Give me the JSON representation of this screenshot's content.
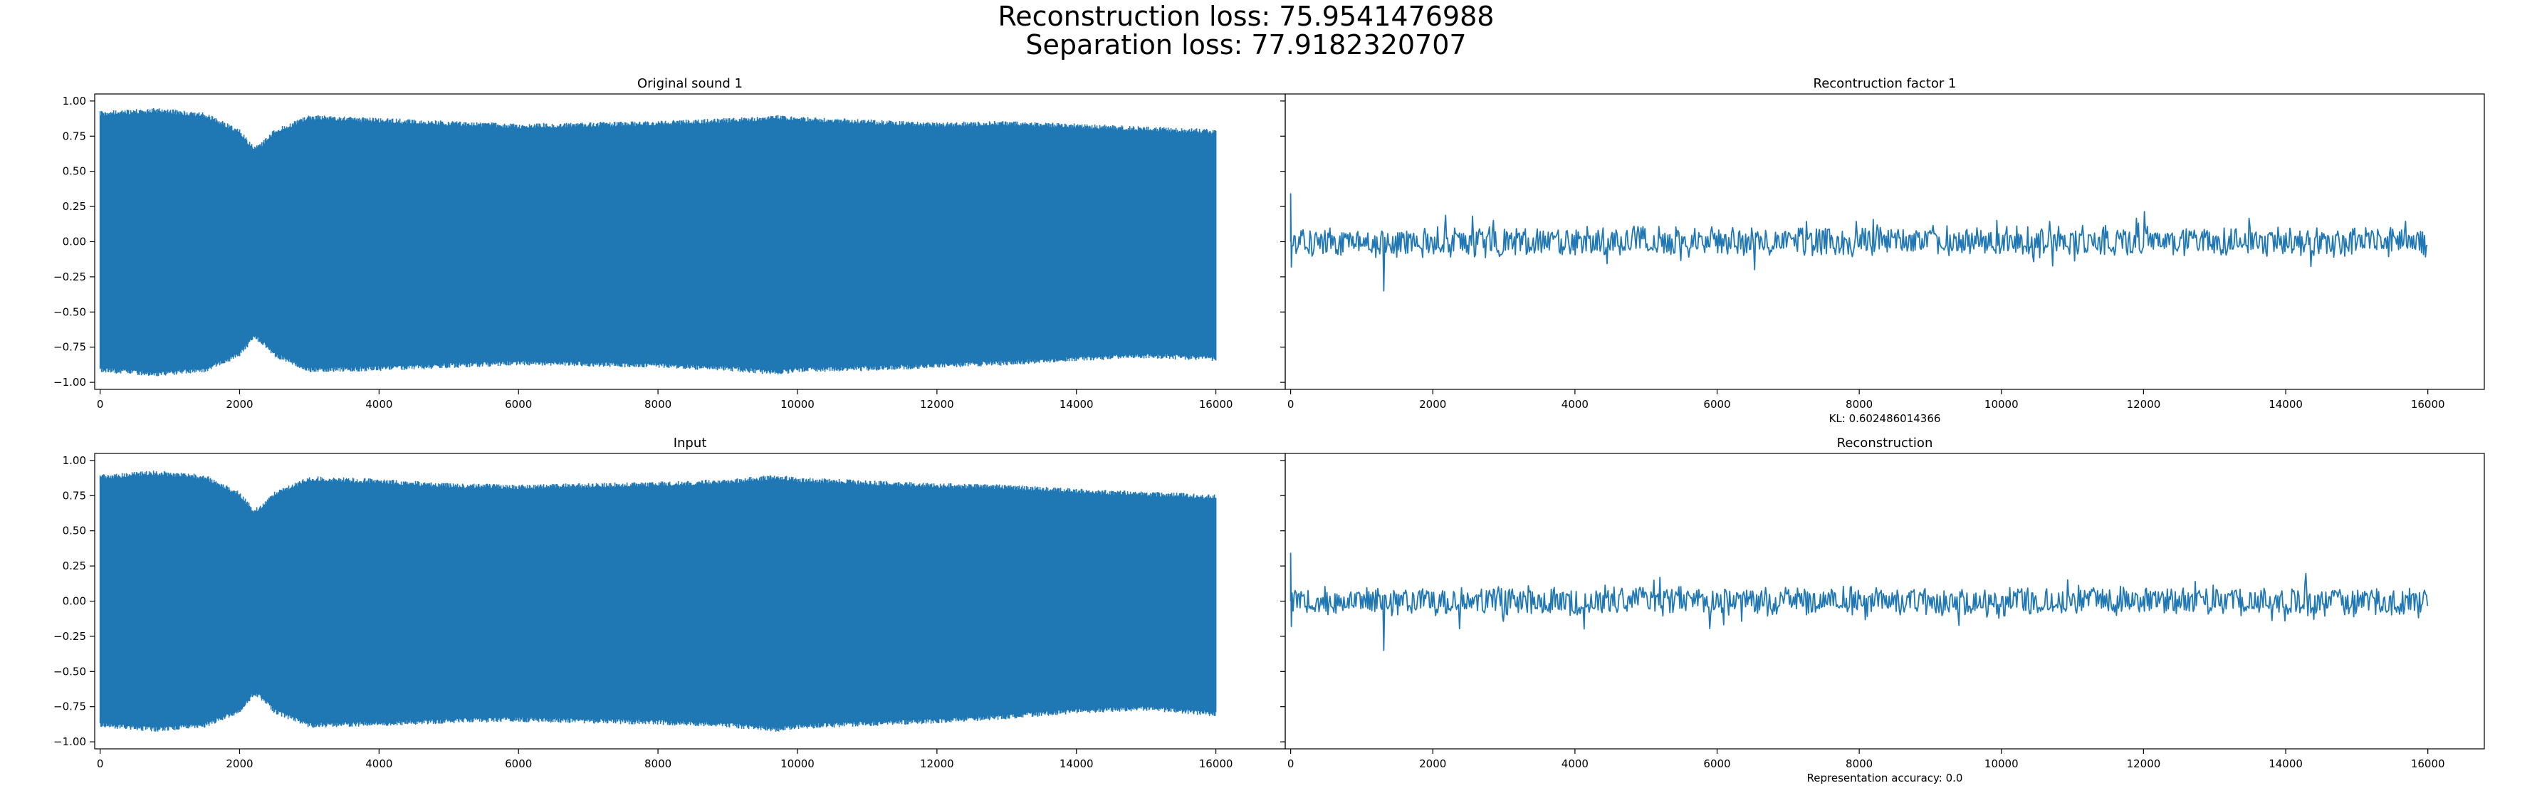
{
  "figure": {
    "suptitle_lines": [
      "Reconstruction loss: 75.9541476988",
      "Separation loss: 77.9182320707"
    ],
    "line_color": "#1f77b4",
    "sharey": true
  },
  "chart_data": [
    {
      "type": "line",
      "title": "Original sound 1",
      "xlabel": "",
      "ylabel": "",
      "xlim": [
        0,
        16000
      ],
      "ylim": [
        -1.05,
        1.05
      ],
      "xticks": [
        0,
        2000,
        4000,
        6000,
        8000,
        10000,
        12000,
        14000,
        16000
      ],
      "yticks": [
        -1.0,
        -0.75,
        -0.5,
        -0.25,
        0.0,
        0.25,
        0.5,
        0.75,
        1.0
      ],
      "ytick_labels": [
        "−1.00",
        "−0.75",
        "−0.50",
        "−0.25",
        "0.00",
        "0.25",
        "0.50",
        "0.75",
        "1.00"
      ],
      "show_ytick_labels": true,
      "envelope": {
        "x": [
          0,
          800,
          1500,
          2000,
          2200,
          2300,
          2500,
          3000,
          4000,
          5000,
          6000,
          7000,
          8000,
          9000,
          9700,
          10000,
          11000,
          12000,
          13000,
          14000,
          15000,
          16000
        ],
        "upper": [
          0.93,
          0.95,
          0.92,
          0.8,
          0.68,
          0.7,
          0.8,
          0.9,
          0.88,
          0.86,
          0.84,
          0.85,
          0.86,
          0.88,
          0.9,
          0.89,
          0.87,
          0.85,
          0.86,
          0.84,
          0.82,
          0.8
        ],
        "lower": [
          -0.93,
          -0.96,
          -0.93,
          -0.82,
          -0.7,
          -0.72,
          -0.82,
          -0.93,
          -0.92,
          -0.9,
          -0.88,
          -0.89,
          -0.9,
          -0.92,
          -0.95,
          -0.93,
          -0.92,
          -0.9,
          -0.88,
          -0.85,
          -0.83,
          -0.85
        ]
      },
      "signal_summary": {
        "kind": "dense-oscillation",
        "start_x": 0,
        "end_x": 16000
      }
    },
    {
      "type": "line",
      "title": "Recontruction factor 1",
      "xlabel": "KL: 0.602486014366",
      "ylabel": "",
      "xlim": [
        0,
        16000
      ],
      "ylim": [
        -1.05,
        1.05
      ],
      "xticks": [
        0,
        2000,
        4000,
        6000,
        8000,
        10000,
        12000,
        14000,
        16000
      ],
      "yticks": [
        -1.0,
        -0.75,
        -0.5,
        -0.25,
        0.0,
        0.25,
        0.5,
        0.75,
        1.0
      ],
      "show_ytick_labels": false,
      "signal_summary": {
        "kind": "noise",
        "start_x": 0,
        "end_x": 16000,
        "center": 0.0,
        "typical_amplitude": 0.09,
        "peak_max": 0.34,
        "peak_min": -0.35
      }
    },
    {
      "type": "line",
      "title": "Input",
      "xlabel": "",
      "ylabel": "",
      "xlim": [
        0,
        16000
      ],
      "ylim": [
        -1.05,
        1.05
      ],
      "xticks": [
        0,
        2000,
        4000,
        6000,
        8000,
        10000,
        12000,
        14000,
        16000
      ],
      "yticks": [
        -1.0,
        -0.75,
        -0.5,
        -0.25,
        0.0,
        0.25,
        0.5,
        0.75,
        1.0
      ],
      "ytick_labels": [
        "−1.00",
        "−0.75",
        "−0.50",
        "−0.25",
        "0.00",
        "0.25",
        "0.50",
        "0.75",
        "1.00"
      ],
      "show_ytick_labels": true,
      "envelope": {
        "x": [
          0,
          800,
          1500,
          2000,
          2200,
          2300,
          2500,
          3000,
          4000,
          5000,
          6000,
          7000,
          8000,
          9000,
          9700,
          10000,
          11000,
          12000,
          13000,
          14000,
          15000,
          16000
        ],
        "upper": [
          0.9,
          0.93,
          0.9,
          0.78,
          0.66,
          0.68,
          0.78,
          0.89,
          0.87,
          0.84,
          0.83,
          0.84,
          0.85,
          0.87,
          0.9,
          0.88,
          0.86,
          0.84,
          0.83,
          0.8,
          0.78,
          0.76
        ],
        "lower": [
          -0.9,
          -0.93,
          -0.9,
          -0.8,
          -0.68,
          -0.7,
          -0.8,
          -0.9,
          -0.89,
          -0.87,
          -0.86,
          -0.87,
          -0.88,
          -0.9,
          -0.93,
          -0.91,
          -0.89,
          -0.87,
          -0.84,
          -0.8,
          -0.78,
          -0.82
        ]
      },
      "signal_summary": {
        "kind": "dense-oscillation",
        "start_x": 0,
        "end_x": 16000
      }
    },
    {
      "type": "line",
      "title": "Reconstruction",
      "xlabel": "Representation accuracy: 0.0",
      "ylabel": "",
      "xlim": [
        0,
        16000
      ],
      "ylim": [
        -1.05,
        1.05
      ],
      "xticks": [
        0,
        2000,
        4000,
        6000,
        8000,
        10000,
        12000,
        14000,
        16000
      ],
      "yticks": [
        -1.0,
        -0.75,
        -0.5,
        -0.25,
        0.0,
        0.25,
        0.5,
        0.75,
        1.0
      ],
      "show_ytick_labels": false,
      "signal_summary": {
        "kind": "noise",
        "start_x": 0,
        "end_x": 16000,
        "center": 0.0,
        "typical_amplitude": 0.09,
        "peak_max": 0.34,
        "peak_min": -0.35
      }
    }
  ]
}
